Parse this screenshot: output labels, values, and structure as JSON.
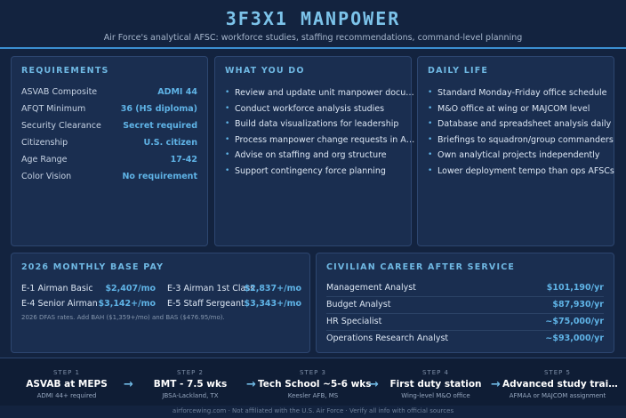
{
  "header": {
    "title": "3F3X1 MANPOWER",
    "subtitle": "Air Force's analytical AFSC: workforce studies, staffing recommendations, command-level planning"
  },
  "requirements": {
    "title": "REQUIREMENTS",
    "rows": [
      {
        "label": "ASVAB Composite",
        "value": "ADMI 44"
      },
      {
        "label": "AFQT Minimum",
        "value": "36 (HS diploma)"
      },
      {
        "label": "Security Clearance",
        "value": "Secret required"
      },
      {
        "label": "Citizenship",
        "value": "U.S. citizen"
      },
      {
        "label": "Age Range",
        "value": "17-42"
      },
      {
        "label": "Color Vision",
        "value": "No requirement"
      }
    ]
  },
  "what_you_do": {
    "title": "WHAT YOU DO",
    "items": [
      "Review and update unit manpower docu…",
      "Conduct workforce analysis studies",
      "Build data visualizations for leadership",
      "Process manpower change requests in A…",
      "Advise on staffing and org structure",
      "Support contingency force planning"
    ]
  },
  "daily_life": {
    "title": "DAILY LIFE",
    "items": [
      "Standard Monday-Friday office schedule",
      "M&O office at wing or MAJCOM level",
      "Database and spreadsheet analysis daily",
      "Briefings to squadron/group commanders",
      "Own analytical projects independently",
      "Lower deployment tempo than ops AFSCs"
    ]
  },
  "base_pay": {
    "title": "2026 MONTHLY BASE PAY",
    "grades": [
      {
        "label": "E-1 Airman Basic",
        "value": "$2,407/mo"
      },
      {
        "label": "E-3 Airman 1st Class",
        "value": "$2,837+/mo"
      },
      {
        "label": "E-4 Senior Airman",
        "value": "$3,142+/mo"
      },
      {
        "label": "E-5 Staff Sergeant",
        "value": "$3,343+/mo"
      }
    ],
    "note": "2026 DFAS rates. Add BAH ($1,359+/mo) and BAS ($476.95/mo)."
  },
  "civilian_career": {
    "title": "CIVILIAN CAREER AFTER SERVICE",
    "rows": [
      {
        "label": "Management Analyst",
        "value": "$101,190/yr"
      },
      {
        "label": "Budget Analyst",
        "value": "$87,930/yr"
      },
      {
        "label": "HR Specialist",
        "value": "~$75,000/yr"
      },
      {
        "label": "Operations Research Analyst",
        "value": "~$93,000/yr"
      }
    ]
  },
  "pathway": {
    "steps": [
      {
        "num": "STEP 1",
        "name": "ASVAB at MEPS",
        "sub": "ADMI 44+ required"
      },
      {
        "num": "STEP 2",
        "name": "BMT - 7.5 wks",
        "sub": "JBSA-Lackland, TX"
      },
      {
        "num": "STEP 3",
        "name": "Tech School ~5-6 wks",
        "sub": "Keesler AFB, MS"
      },
      {
        "num": "STEP 4",
        "name": "First duty station",
        "sub": "Wing-level M&O office"
      },
      {
        "num": "STEP 5",
        "name": "Advanced study trai…",
        "sub": "AFMAA or MAJCOM assignment"
      }
    ],
    "arrow_glyph": "→"
  },
  "bullet_glyph": "•",
  "footer": "airforcewing.com · Not affiliated with the U.S. Air Force · Verify all info with official sources",
  "colors": {
    "background": "#13233f",
    "panel": "#1a2e50",
    "accent": "#5fb3e6",
    "title": "#7cc3ea",
    "rule": "#3b8fd1"
  }
}
